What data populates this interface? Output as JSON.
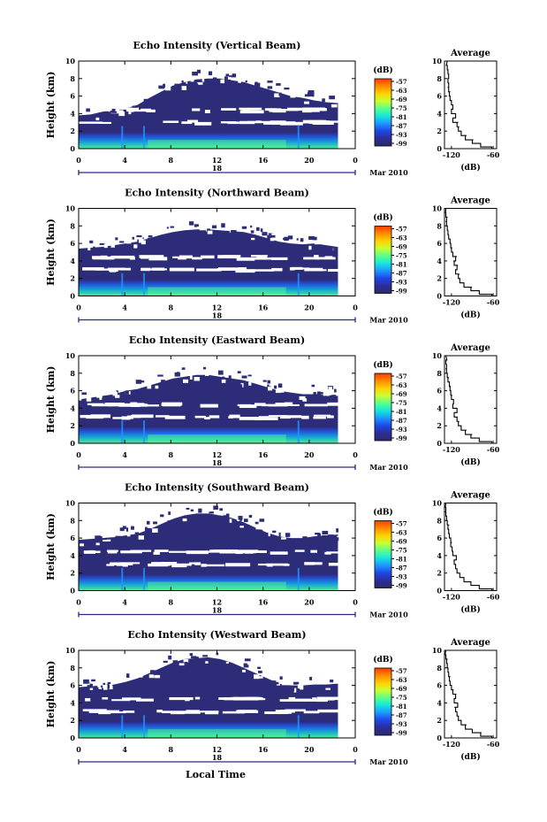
{
  "figure": {
    "bottom_xlabel": "Local Time",
    "colorbar_unit": "(dB)",
    "colorbar_ticks": [
      "-57",
      "-63",
      "-69",
      "-75",
      "-81",
      "-87",
      "-93",
      "-99"
    ],
    "colorbar_colors": [
      "#ff3a00",
      "#ff8c00",
      "#ffd200",
      "#c8ff32",
      "#5aff8c",
      "#14e6dc",
      "#1e96ff",
      "#1e46e6",
      "#2d2d96",
      "#2a2a6e"
    ],
    "date_label": "Mar 2010"
  },
  "chart_data": [
    {
      "type": "heatmap",
      "title": "Echo Intensity (Vertical Beam)",
      "ylabel": "Height (km)",
      "xlabel": "",
      "x_ticks": [
        "0",
        "4",
        "8",
        "12",
        "16",
        "20",
        "0"
      ],
      "y_ticks": [
        "0",
        "2",
        "4",
        "6",
        "8",
        "10"
      ],
      "xlim": [
        0,
        24
      ],
      "ylim": [
        0,
        10
      ],
      "day_label": "18",
      "zlim": [
        -99,
        -57
      ],
      "echo_top_km": [
        3.8,
        3.9,
        4.2,
        4.5,
        4.6,
        5.0,
        5.8,
        6.5,
        7.2,
        7.6,
        7.9,
        8.0,
        8.0,
        7.8,
        7.6,
        7.2,
        6.8,
        6.4,
        6.0,
        5.8,
        5.5,
        5.3,
        5.2
      ],
      "profile": {
        "title": "Average",
        "xlabel": "(dB)",
        "x_ticks": [
          "-120",
          "-60"
        ],
        "y_ticks": [
          "0",
          "2",
          "4",
          "6",
          "8",
          "10"
        ],
        "xlim": [
          -130,
          -55
        ],
        "height_km": [
          0.2,
          0.6,
          1.0,
          1.5,
          2.0,
          2.5,
          3.0,
          3.5,
          4.0,
          4.5,
          5.0,
          5.5,
          6.0,
          6.5,
          7.0,
          7.5,
          8.0,
          8.5,
          9.0,
          9.5
        ],
        "avg_db": [
          -62,
          -78,
          -90,
          -100,
          -106,
          -110,
          -112,
          -118,
          -114,
          -120,
          -118,
          -120,
          -122,
          -123,
          -124,
          -124,
          -125,
          -124,
          -125,
          -126
        ]
      }
    },
    {
      "type": "heatmap",
      "title": "Echo Intensity (Northward Beam)",
      "ylabel": "Height (km)",
      "xlabel": "",
      "x_ticks": [
        "0",
        "4",
        "8",
        "12",
        "16",
        "20",
        "0"
      ],
      "y_ticks": [
        "0",
        "2",
        "4",
        "6",
        "8",
        "10"
      ],
      "xlim": [
        0,
        24
      ],
      "ylim": [
        0,
        10
      ],
      "day_label": "18",
      "zlim": [
        -99,
        -57
      ],
      "echo_top_km": [
        5.4,
        5.5,
        5.6,
        5.8,
        6.0,
        6.2,
        6.6,
        7.0,
        7.3,
        7.5,
        7.6,
        7.6,
        7.5,
        7.4,
        7.3,
        7.0,
        6.6,
        6.2,
        6.0,
        5.9,
        6.0,
        5.8,
        5.6
      ],
      "profile": {
        "title": "Average",
        "xlabel": "(dB)",
        "x_ticks": [
          "-120",
          "-60"
        ],
        "y_ticks": [
          "0",
          "2",
          "4",
          "6",
          "8",
          "10"
        ],
        "xlim": [
          -130,
          -55
        ],
        "height_km": [
          0.2,
          0.6,
          1.0,
          1.5,
          2.0,
          2.5,
          3.0,
          3.5,
          4.0,
          4.5,
          5.0,
          5.5,
          6.0,
          6.5,
          7.0,
          7.5,
          8.0,
          8.5,
          9.0,
          9.5
        ],
        "avg_db": [
          -62,
          -80,
          -92,
          -102,
          -108,
          -110,
          -114,
          -112,
          -116,
          -114,
          -118,
          -120,
          -121,
          -122,
          -124,
          -125,
          -126,
          -127,
          -127,
          -128
        ]
      }
    },
    {
      "type": "heatmap",
      "title": "Echo Intensity (Eastward Beam)",
      "ylabel": "Height (km)",
      "xlabel": "",
      "x_ticks": [
        "0",
        "4",
        "8",
        "12",
        "16",
        "20",
        "0"
      ],
      "y_ticks": [
        "0",
        "2",
        "4",
        "6",
        "8",
        "10"
      ],
      "xlim": [
        0,
        24
      ],
      "ylim": [
        0,
        10
      ],
      "day_label": "18",
      "zlim": [
        -99,
        -57
      ],
      "echo_top_km": [
        5.0,
        5.2,
        5.4,
        5.6,
        6.0,
        6.2,
        6.6,
        7.0,
        7.4,
        7.6,
        7.8,
        7.8,
        7.6,
        7.4,
        7.2,
        6.8,
        6.4,
        6.0,
        5.8,
        5.6,
        5.6,
        5.5,
        5.4
      ],
      "profile": {
        "title": "Average",
        "xlabel": "(dB)",
        "x_ticks": [
          "-120",
          "-60"
        ],
        "y_ticks": [
          "0",
          "2",
          "4",
          "6",
          "8",
          "10"
        ],
        "xlim": [
          -130,
          -55
        ],
        "height_km": [
          0.2,
          0.6,
          1.0,
          1.5,
          2.0,
          2.5,
          3.0,
          3.5,
          4.0,
          4.5,
          5.0,
          5.5,
          6.0,
          6.5,
          7.0,
          7.5,
          8.0,
          8.5,
          9.0,
          9.5
        ],
        "avg_db": [
          -62,
          -80,
          -92,
          -100,
          -106,
          -110,
          -112,
          -116,
          -112,
          -118,
          -117,
          -120,
          -121,
          -122,
          -123,
          -125,
          -126,
          -127,
          -127,
          -128
        ]
      }
    },
    {
      "type": "heatmap",
      "title": "Echo Intensity (Southward Beam)",
      "ylabel": "Height (km)",
      "xlabel": "",
      "x_ticks": [
        "0",
        "4",
        "8",
        "12",
        "16",
        "20",
        "0"
      ],
      "y_ticks": [
        "0",
        "2",
        "4",
        "6",
        "8",
        "10"
      ],
      "xlim": [
        0,
        24
      ],
      "ylim": [
        0,
        10
      ],
      "day_label": "18",
      "zlim": [
        -99,
        -57
      ],
      "echo_top_km": [
        5.8,
        5.9,
        6.0,
        6.1,
        6.3,
        6.5,
        7.0,
        7.6,
        8.2,
        8.6,
        8.8,
        8.8,
        8.6,
        8.3,
        7.8,
        7.2,
        6.6,
        6.2,
        6.0,
        6.0,
        6.2,
        6.3,
        6.4
      ],
      "profile": {
        "title": "Average",
        "xlabel": "(dB)",
        "x_ticks": [
          "-120",
          "-60"
        ],
        "y_ticks": [
          "0",
          "2",
          "4",
          "6",
          "8",
          "10"
        ],
        "xlim": [
          -130,
          -55
        ],
        "height_km": [
          0.2,
          0.6,
          1.0,
          1.5,
          2.0,
          2.5,
          3.0,
          3.5,
          4.0,
          4.5,
          5.0,
          5.5,
          6.0,
          6.5,
          7.0,
          7.5,
          8.0,
          8.5,
          9.0,
          9.5
        ],
        "avg_db": [
          -62,
          -80,
          -92,
          -102,
          -108,
          -112,
          -114,
          -116,
          -113,
          -118,
          -119,
          -121,
          -121,
          -123,
          -124,
          -125,
          -126,
          -127,
          -128,
          -128
        ]
      }
    },
    {
      "type": "heatmap",
      "title": "Echo Intensity (Westward Beam)",
      "ylabel": "Height (km)",
      "xlabel": "",
      "x_ticks": [
        "0",
        "4",
        "8",
        "12",
        "16",
        "20",
        "0"
      ],
      "y_ticks": [
        "0",
        "2",
        "4",
        "6",
        "8",
        "10"
      ],
      "xlim": [
        0,
        24
      ],
      "ylim": [
        0,
        10
      ],
      "day_label": "18",
      "zlim": [
        -99,
        -57
      ],
      "echo_top_km": [
        5.8,
        5.9,
        6.0,
        6.1,
        6.4,
        6.8,
        7.4,
        8.0,
        8.6,
        9.0,
        9.1,
        9.2,
        9.0,
        8.6,
        8.0,
        7.4,
        6.8,
        6.2,
        6.0,
        6.0,
        6.1,
        6.1,
        6.2
      ],
      "profile": {
        "title": "Average",
        "xlabel": "(dB)",
        "x_ticks": [
          "-120",
          "-60"
        ],
        "y_ticks": [
          "0",
          "2",
          "4",
          "6",
          "8",
          "10"
        ],
        "xlim": [
          -130,
          -55
        ],
        "height_km": [
          0.2,
          0.6,
          1.0,
          1.5,
          2.0,
          2.5,
          3.0,
          3.5,
          4.0,
          4.5,
          5.0,
          5.5,
          6.0,
          6.5,
          7.0,
          7.5,
          8.0,
          8.5,
          9.0,
          9.5
        ],
        "avg_db": [
          -62,
          -78,
          -90,
          -100,
          -106,
          -110,
          -112,
          -114,
          -111,
          -116,
          -114,
          -118,
          -120,
          -122,
          -123,
          -124,
          -125,
          -126,
          -127,
          -128
        ]
      }
    }
  ]
}
